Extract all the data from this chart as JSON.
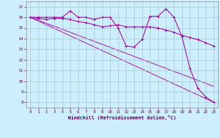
{
  "xlabel": "Windchill (Refroidissement éolien,°C)",
  "bg_color": "#cceeff",
  "grid_color": "#aacccc",
  "line_color": "#aa00aa",
  "xlim": [
    -0.5,
    23.5
  ],
  "ylim": [
    7.5,
    17.5
  ],
  "xticks": [
    0,
    1,
    2,
    3,
    4,
    5,
    6,
    7,
    8,
    9,
    10,
    11,
    12,
    13,
    14,
    15,
    16,
    17,
    18,
    19,
    20,
    21,
    22,
    23
  ],
  "yticks": [
    8,
    9,
    10,
    11,
    12,
    13,
    14,
    15,
    16,
    17
  ],
  "line1_x": [
    0,
    1,
    2,
    3,
    4,
    5,
    6,
    7,
    8,
    9,
    10,
    11,
    12,
    13,
    14,
    15,
    16,
    17,
    18,
    19,
    20,
    21,
    22,
    23
  ],
  "line1_y": [
    16.0,
    16.0,
    16.0,
    16.0,
    16.0,
    16.6,
    16.0,
    16.0,
    15.8,
    16.0,
    16.0,
    15.0,
    13.3,
    13.2,
    13.9,
    16.1,
    16.1,
    16.8,
    16.0,
    14.2,
    11.2,
    9.3,
    8.5,
    8.0
  ],
  "line2_x": [
    0,
    1,
    2,
    3,
    4,
    5,
    6,
    7,
    8,
    9,
    10,
    11,
    12,
    13,
    14,
    15,
    16,
    17,
    18,
    19,
    20,
    21,
    22,
    23
  ],
  "line2_y": [
    16.0,
    15.9,
    15.8,
    15.9,
    15.9,
    15.8,
    15.6,
    15.5,
    15.3,
    15.1,
    15.2,
    15.3,
    15.1,
    15.1,
    15.1,
    15.1,
    15.0,
    14.8,
    14.6,
    14.3,
    14.1,
    13.9,
    13.6,
    13.3
  ],
  "line3_x": [
    0,
    23
  ],
  "line3_y": [
    16.0,
    8.0
  ],
  "line4_x": [
    0,
    23
  ],
  "line4_y": [
    16.0,
    9.5
  ]
}
